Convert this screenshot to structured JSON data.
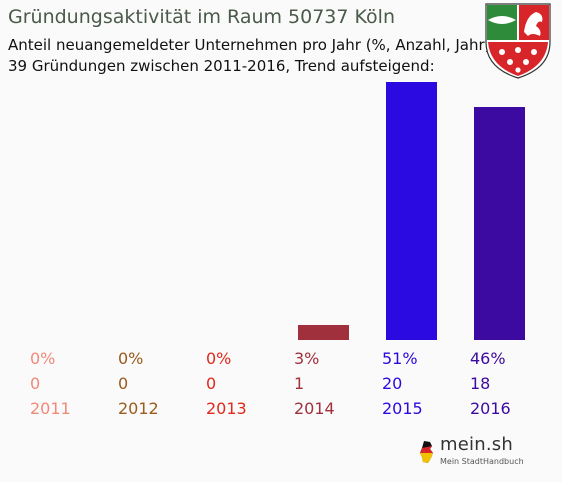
{
  "header": {
    "title": "Gründungsaktivität im Raum 50737 Köln",
    "subtitle_line1": "Anteil neuangemeldeter Unternehmen pro Jahr (%, Anzahl, Jahr)",
    "subtitle_line2": "39 Gründungen zwischen 2011-2016, Trend aufsteigend:"
  },
  "branding": {
    "crest_icon": "nrw-coat-of-arms-icon",
    "logo_text": "mein.sh",
    "logo_subtext": "Mein StadtHandbuch"
  },
  "chart_data": {
    "type": "bar",
    "title": "Gründungsaktivität im Raum 50737 Köln",
    "categories": [
      "2011",
      "2012",
      "2013",
      "2014",
      "2015",
      "2016"
    ],
    "values": [
      0,
      0,
      0,
      3,
      51,
      46
    ],
    "percent_labels": [
      "0%",
      "0%",
      "0%",
      "3%",
      "51%",
      "46%"
    ],
    "counts": [
      "0",
      "0",
      "0",
      "1",
      "20",
      "18"
    ],
    "colors": [
      "#f08a78",
      "#9c5a1c",
      "#e0281c",
      "#a0303c",
      "#2a0ae0",
      "#3c0aa0"
    ],
    "ylim": [
      0,
      51
    ],
    "xlabel": "",
    "ylabel": "",
    "grid": false,
    "legend": "none"
  }
}
